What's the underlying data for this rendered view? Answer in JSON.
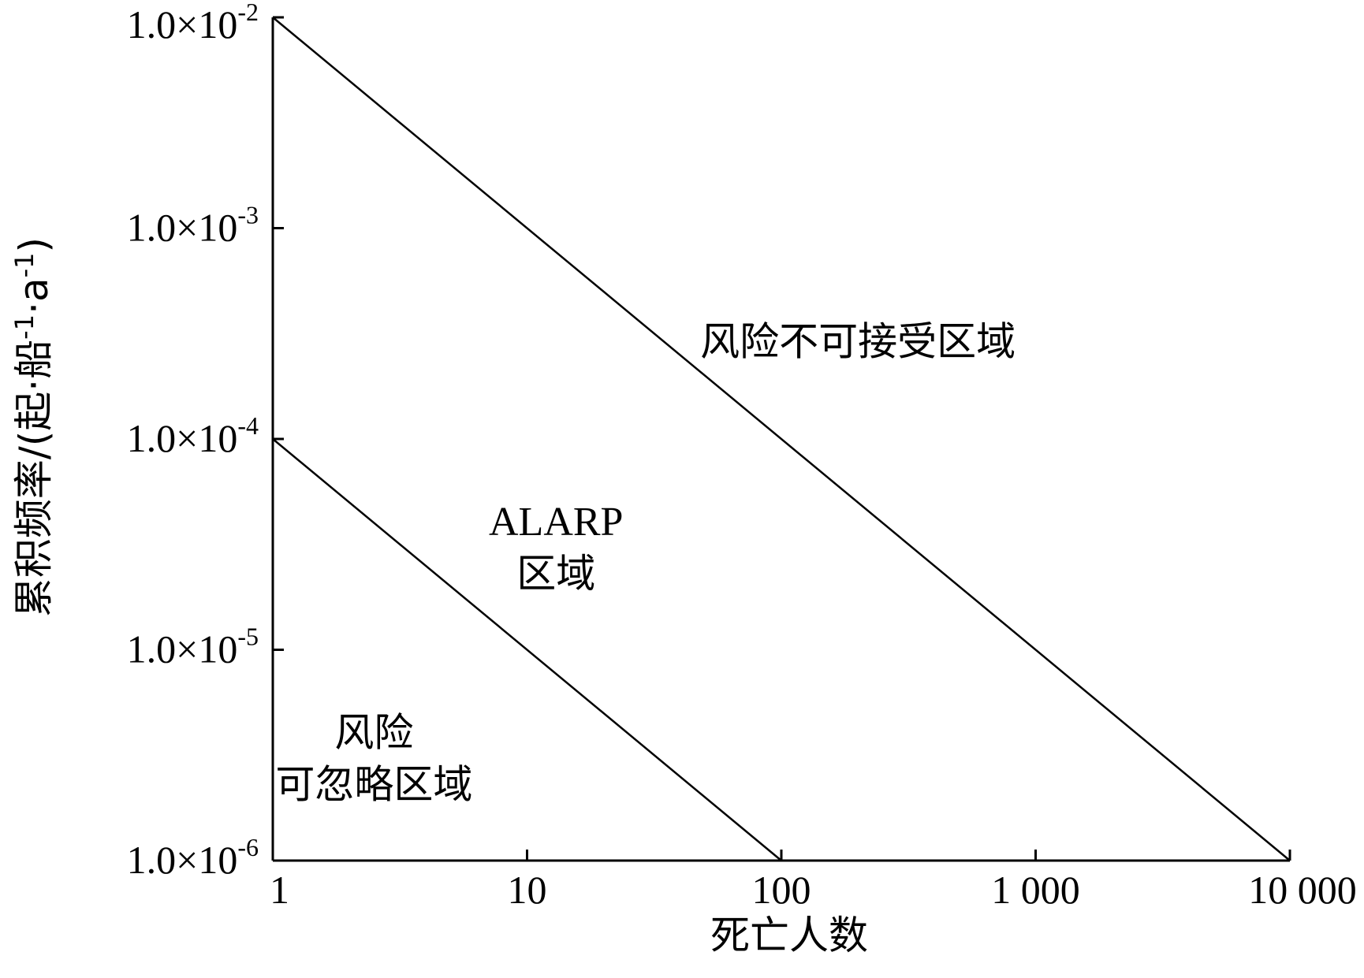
{
  "chart_data": {
    "type": "line",
    "x_scale": "log",
    "y_scale": "log",
    "xlim": [
      1,
      10000
    ],
    "ylim": [
      1e-06,
      0.01
    ],
    "xlabel": "死亡人数",
    "ylabel": "累积频率/(起·船",
    "ylabel_sup1": "-1",
    "ylabel_mid": "·a",
    "ylabel_sup2": "-1",
    "ylabel_end": ")",
    "x_ticks": [
      {
        "value": 1,
        "label": "1"
      },
      {
        "value": 10,
        "label": "10"
      },
      {
        "value": 100,
        "label": "100"
      },
      {
        "value": 1000,
        "label": "1 000"
      },
      {
        "value": 10000,
        "label": "10 000"
      }
    ],
    "y_ticks": [
      {
        "value": 0.01,
        "base": "1.0×10",
        "exp": "-2"
      },
      {
        "value": 0.001,
        "base": "1.0×10",
        "exp": "-3"
      },
      {
        "value": 0.0001,
        "base": "1.0×10",
        "exp": "-4"
      },
      {
        "value": 1e-05,
        "base": "1.0×10",
        "exp": "-5"
      },
      {
        "value": 1e-06,
        "base": "1.0×10",
        "exp": "-6"
      }
    ],
    "series": [
      {
        "x": [
          1,
          10000
        ],
        "y": [
          0.01,
          1e-06
        ]
      },
      {
        "x": [
          1,
          100
        ],
        "y": [
          0.0001,
          1e-06
        ]
      }
    ],
    "annotations": [
      {
        "id": "unacceptable",
        "lines": [
          "风险不可接受区域"
        ],
        "x": 200,
        "y": 0.00025
      },
      {
        "id": "alarp",
        "lines": [
          "ALARP",
          "区域"
        ],
        "x": 13,
        "y": 3.5e-05
      },
      {
        "id": "negligible",
        "lines": [
          "风险",
          "可忽略区域"
        ],
        "x": 2.5,
        "y": 3.5e-06
      }
    ]
  }
}
